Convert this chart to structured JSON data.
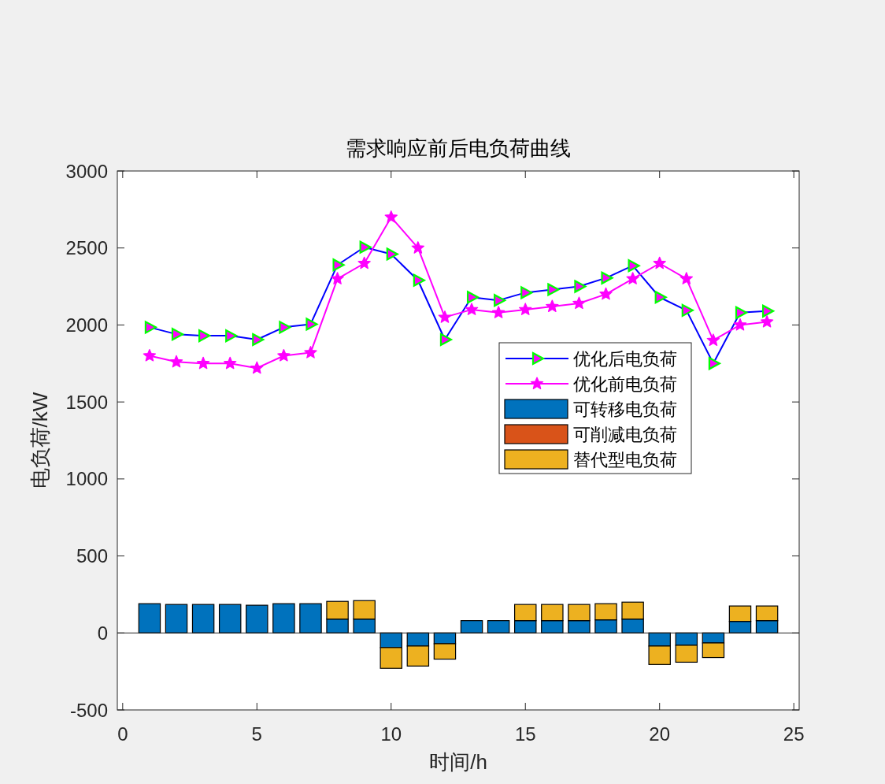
{
  "chart_data": {
    "type": "bar",
    "stacked": true,
    "title": "需求响应前后电负荷曲线",
    "xlabel": "时间/h",
    "ylabel": "电负荷/kW",
    "x": [
      1,
      2,
      3,
      4,
      5,
      6,
      7,
      8,
      9,
      10,
      11,
      12,
      13,
      14,
      15,
      16,
      17,
      18,
      19,
      20,
      21,
      22,
      23,
      24
    ],
    "xlim": [
      -0.2,
      25.2
    ],
    "xticks": [
      0,
      5,
      10,
      15,
      20,
      25
    ],
    "ylim": [
      -500,
      3000
    ],
    "yticks": [
      -500,
      0,
      500,
      1000,
      1500,
      2000,
      2500,
      3000
    ],
    "grid": false,
    "legend": "right",
    "line_style": "solid",
    "ref_lines": [
      {
        "axis": "y",
        "value": 0,
        "color": "#262626"
      }
    ],
    "series": [
      {
        "name": "优化后电负荷",
        "type": "line",
        "color": "#0000ff",
        "marker": "triangle",
        "values": [
          1985,
          1940,
          1930,
          1930,
          1905,
          1985,
          2005,
          2390,
          2505,
          2460,
          2290,
          1905,
          2180,
          2160,
          2210,
          2230,
          2250,
          2305,
          2385,
          2180,
          2095,
          1750,
          2080,
          2090
        ]
      },
      {
        "name": "优化前电负荷",
        "type": "line",
        "color": "#ff00ff",
        "marker": "star",
        "values": [
          1800,
          1760,
          1750,
          1750,
          1720,
          1800,
          1820,
          2300,
          2400,
          2700,
          2500,
          2050,
          2100,
          2080,
          2100,
          2120,
          2140,
          2200,
          2300,
          2400,
          2300,
          1900,
          2000,
          2020
        ]
      },
      {
        "name": "可转移电负荷",
        "color": "#0072bd",
        "values": [
          190,
          185,
          185,
          185,
          180,
          190,
          190,
          90,
          90,
          -95,
          -85,
          -70,
          80,
          80,
          80,
          80,
          80,
          85,
          90,
          -85,
          -80,
          -65,
          75,
          80
        ]
      },
      {
        "name": "可削减电负荷",
        "color": "#d95319",
        "values": [
          0,
          0,
          0,
          0,
          0,
          0,
          0,
          0,
          0,
          0,
          0,
          0,
          0,
          0,
          0,
          0,
          0,
          0,
          0,
          0,
          0,
          0,
          0,
          0
        ]
      },
      {
        "name": "替代型电负荷",
        "color": "#edb120",
        "values": [
          0,
          0,
          0,
          0,
          0,
          0,
          0,
          115,
          120,
          -135,
          -130,
          -100,
          0,
          0,
          105,
          105,
          105,
          105,
          110,
          -120,
          -110,
          -95,
          100,
          95
        ]
      }
    ]
  }
}
